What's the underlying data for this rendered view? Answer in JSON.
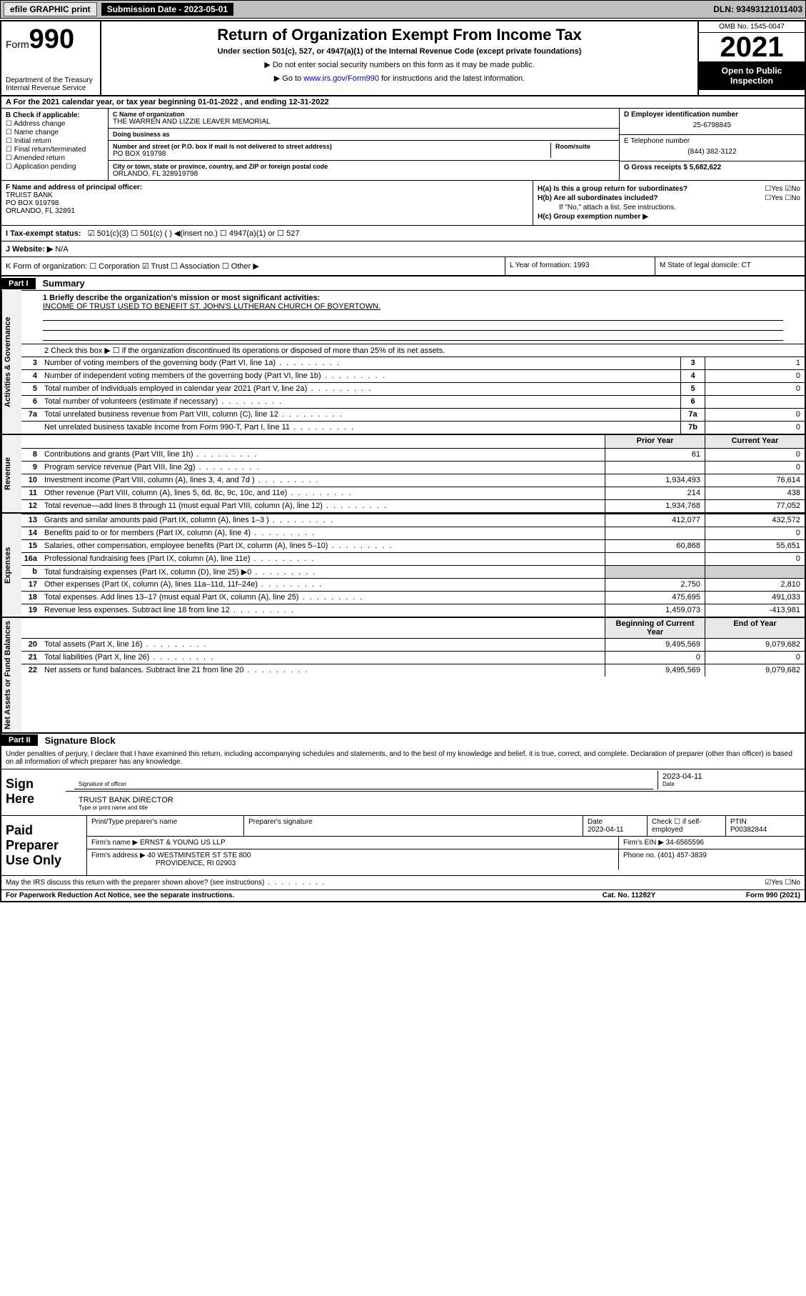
{
  "topbar": {
    "efile": "efile GRAPHIC print",
    "subdate_label": "Submission Date - 2023-05-01",
    "dln": "DLN: 93493121011403"
  },
  "header": {
    "form_prefix": "Form",
    "form_number": "990",
    "dept": "Department of the Treasury",
    "irs": "Internal Revenue Service",
    "title": "Return of Organization Exempt From Income Tax",
    "subtitle": "Under section 501(c), 527, or 4947(a)(1) of the Internal Revenue Code (except private foundations)",
    "note1": "▶ Do not enter social security numbers on this form as it may be made public.",
    "note2_prefix": "▶ Go to ",
    "note2_link": "www.irs.gov/Form990",
    "note2_suffix": " for instructions and the latest information.",
    "omb": "OMB No. 1545-0047",
    "year": "2021",
    "open": "Open to Public Inspection"
  },
  "rowA": "A For the 2021 calendar year, or tax year beginning 01-01-2022   , and ending 12-31-2022",
  "colB": {
    "label": "B Check if applicable:",
    "items": [
      "Address change",
      "Name change",
      "Initial return",
      "Final return/terminated",
      "Amended return",
      "Application pending"
    ]
  },
  "colC": {
    "name_label": "C Name of organization",
    "name": "THE WARREN AND LIZZIE LEAVER MEMORIAL",
    "dba_label": "Doing business as",
    "dba": "",
    "addr_label": "Number and street (or P.O. box if mail is not delivered to street address)",
    "room_label": "Room/suite",
    "addr": "PO BOX 919798",
    "city_label": "City or town, state or province, country, and ZIP or foreign postal code",
    "city": "ORLANDO, FL  328919798"
  },
  "colDE": {
    "d_label": "D Employer identification number",
    "d_val": "25-6798845",
    "e_label": "E Telephone number",
    "e_val": "(844) 382-3122",
    "g_label": "G Gross receipts $",
    "g_val": "5,682,622"
  },
  "rowF": {
    "label": "F Name and address of principal officer:",
    "name": "TRUIST BANK",
    "addr1": "PO BOX 919798",
    "addr2": "ORLANDO, FL  32891"
  },
  "rowH": {
    "ha": "H(a)  Is this a group return for subordinates?",
    "ha_ans": "☐Yes ☑No",
    "hb": "H(b)  Are all subordinates included?",
    "hb_ans": "☐Yes ☐No",
    "hb_note": "If \"No,\" attach a list. See instructions.",
    "hc": "H(c)  Group exemption number ▶"
  },
  "rowI": {
    "label": "I  Tax-exempt status:",
    "opts": "☑ 501(c)(3)   ☐ 501(c) (  ) ◀(insert no.)    ☐ 4947(a)(1) or  ☐ 527"
  },
  "rowJ": {
    "label": "J  Website: ▶",
    "val": "N/A"
  },
  "rowK": {
    "label": "K Form of organization:  ☐ Corporation  ☑ Trust  ☐ Association  ☐ Other ▶",
    "l": "L Year of formation: 1993",
    "m": "M State of legal domicile: CT"
  },
  "part1": {
    "hdr": "Part I",
    "title": "Summary",
    "line1_label": "1  Briefly describe the organization's mission or most significant activities:",
    "line1_text": "INCOME OF TRUST USED TO BENEFIT ST. JOHN'S LUTHERAN CHURCH OF BOYERTOWN.",
    "line2": "2   Check this box ▶ ☐  if the organization discontinued its operations or disposed of more than 25% of its net assets."
  },
  "gov_lines": [
    {
      "n": "3",
      "d": "Number of voting members of the governing body (Part VI, line 1a)",
      "box": "3",
      "v": "1"
    },
    {
      "n": "4",
      "d": "Number of independent voting members of the governing body (Part VI, line 1b)",
      "box": "4",
      "v": "0"
    },
    {
      "n": "5",
      "d": "Total number of individuals employed in calendar year 2021 (Part V, line 2a)",
      "box": "5",
      "v": "0"
    },
    {
      "n": "6",
      "d": "Total number of volunteers (estimate if necessary)",
      "box": "6",
      "v": ""
    },
    {
      "n": "7a",
      "d": "Total unrelated business revenue from Part VIII, column (C), line 12",
      "box": "7a",
      "v": "0"
    },
    {
      "n": "",
      "d": "Net unrelated business taxable income from Form 990-T, Part I, line 11",
      "box": "7b",
      "v": "0"
    }
  ],
  "twocol_hdr": {
    "prior": "Prior Year",
    "current": "Current Year",
    "beg": "Beginning of Current Year",
    "end": "End of Year"
  },
  "revenue_lines": [
    {
      "n": "8",
      "d": "Contributions and grants (Part VIII, line 1h)",
      "p": "61",
      "c": "0"
    },
    {
      "n": "9",
      "d": "Program service revenue (Part VIII, line 2g)",
      "p": "",
      "c": "0"
    },
    {
      "n": "10",
      "d": "Investment income (Part VIII, column (A), lines 3, 4, and 7d )",
      "p": "1,934,493",
      "c": "76,614"
    },
    {
      "n": "11",
      "d": "Other revenue (Part VIII, column (A), lines 5, 6d, 8c, 9c, 10c, and 11e)",
      "p": "214",
      "c": "438"
    },
    {
      "n": "12",
      "d": "Total revenue—add lines 8 through 11 (must equal Part VIII, column (A), line 12)",
      "p": "1,934,768",
      "c": "77,052"
    }
  ],
  "expense_lines": [
    {
      "n": "13",
      "d": "Grants and similar amounts paid (Part IX, column (A), lines 1–3 )",
      "p": "412,077",
      "c": "432,572"
    },
    {
      "n": "14",
      "d": "Benefits paid to or for members (Part IX, column (A), line 4)",
      "p": "",
      "c": "0"
    },
    {
      "n": "15",
      "d": "Salaries, other compensation, employee benefits (Part IX, column (A), lines 5–10)",
      "p": "60,868",
      "c": "55,651"
    },
    {
      "n": "16a",
      "d": "Professional fundraising fees (Part IX, column (A), line 11e)",
      "p": "",
      "c": "0"
    },
    {
      "n": "b",
      "d": "Total fundraising expenses (Part IX, column (D), line 25) ▶0",
      "p": "",
      "c": "",
      "shade": true
    },
    {
      "n": "17",
      "d": "Other expenses (Part IX, column (A), lines 11a–11d, 11f–24e)",
      "p": "2,750",
      "c": "2,810"
    },
    {
      "n": "18",
      "d": "Total expenses. Add lines 13–17 (must equal Part IX, column (A), line 25)",
      "p": "475,695",
      "c": "491,033"
    },
    {
      "n": "19",
      "d": "Revenue less expenses. Subtract line 18 from line 12",
      "p": "1,459,073",
      "c": "-413,981"
    }
  ],
  "net_lines": [
    {
      "n": "20",
      "d": "Total assets (Part X, line 16)",
      "p": "9,495,569",
      "c": "9,079,682"
    },
    {
      "n": "21",
      "d": "Total liabilities (Part X, line 26)",
      "p": "0",
      "c": "0"
    },
    {
      "n": "22",
      "d": "Net assets or fund balances. Subtract line 21 from line 20",
      "p": "9,495,569",
      "c": "9,079,682"
    }
  ],
  "sidetabs": {
    "gov": "Activities & Governance",
    "rev": "Revenue",
    "exp": "Expenses",
    "net": "Net Assets or Fund Balances"
  },
  "part2": {
    "hdr": "Part II",
    "title": "Signature Block",
    "decl": "Under penalties of perjury, I declare that I have examined this return, including accompanying schedules and statements, and to the best of my knowledge and belief, it is true, correct, and complete. Declaration of preparer (other than officer) is based on all information of which preparer has any knowledge."
  },
  "sign": {
    "label": "Sign Here",
    "sig_label": "Signature of officer",
    "date_label": "Date",
    "date": "2023-04-11",
    "name": "TRUIST BANK DIRECTOR",
    "name_label": "Type or print name and title"
  },
  "paid": {
    "label": "Paid Preparer Use Only",
    "h1": "Print/Type preparer's name",
    "h2": "Preparer's signature",
    "h3": "Date",
    "date": "2023-04-11",
    "h4": "Check ☐ if self-employed",
    "h5": "PTIN",
    "ptin": "P00382844",
    "firm_label": "Firm's name    ▶",
    "firm": "ERNST & YOUNG US LLP",
    "ein_label": "Firm's EIN ▶",
    "ein": "34-6565596",
    "addr_label": "Firm's address ▶",
    "addr1": "40 WESTMINSTER ST STE 800",
    "addr2": "PROVIDENCE, RI  02903",
    "phone_label": "Phone no.",
    "phone": "(401) 457-3839"
  },
  "footer": {
    "q": "May the IRS discuss this return with the preparer shown above? (see instructions)",
    "ans": "☑Yes  ☐No",
    "pra": "For Paperwork Reduction Act Notice, see the separate instructions.",
    "cat": "Cat. No. 11282Y",
    "form": "Form 990 (2021)"
  },
  "colors": {
    "link": "#0000cc",
    "check": "#2a7a2a",
    "shade": "#d0d0d0"
  }
}
